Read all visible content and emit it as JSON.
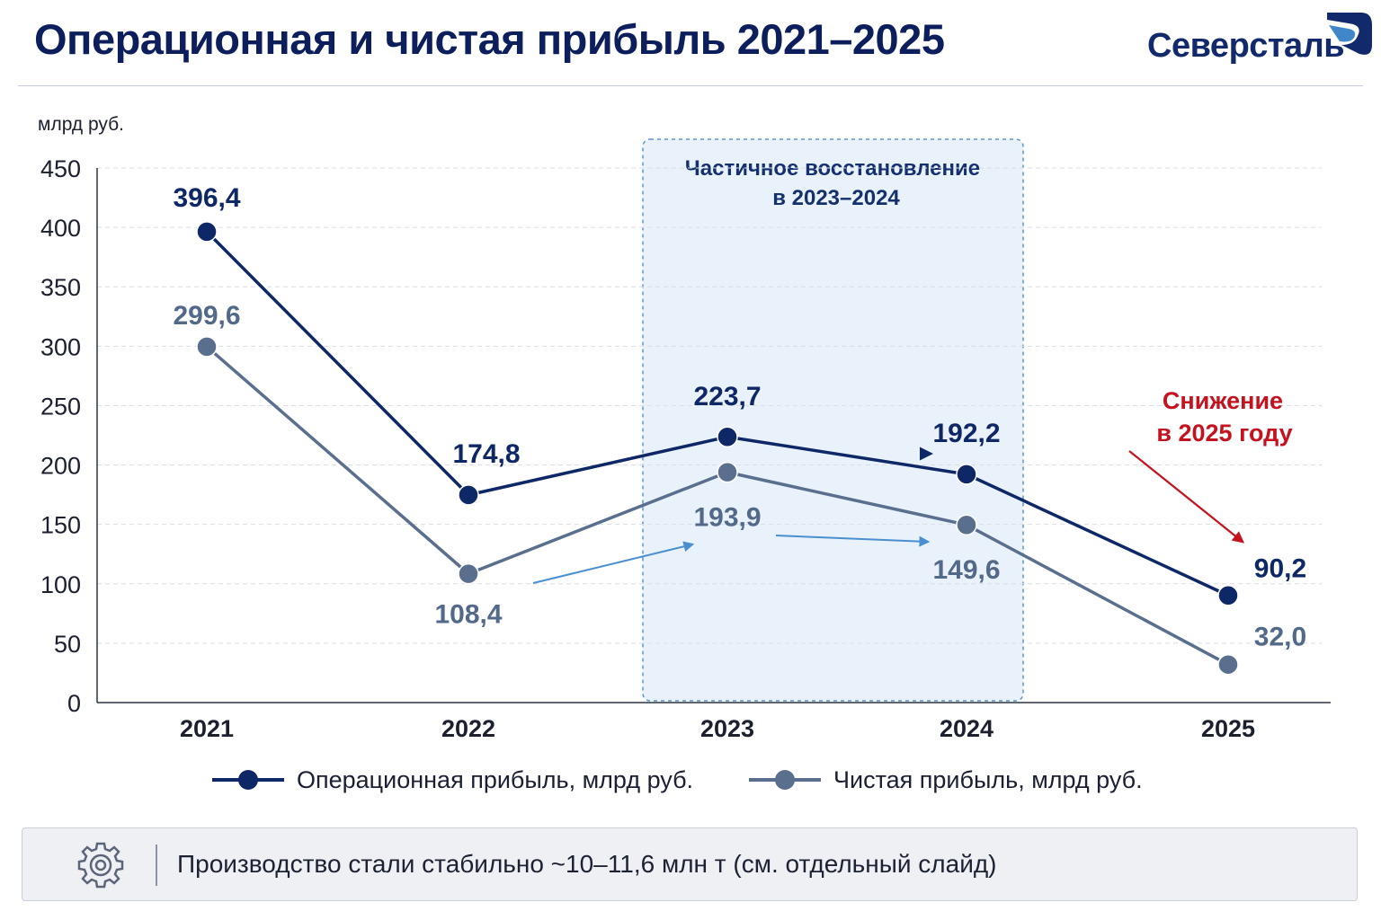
{
  "header": {
    "title": "Операционная и чистая прибыль 2021–2025",
    "brand": "Северсталь"
  },
  "colors": {
    "operating": "#0e2766",
    "net": "#5a6f8e",
    "highlight_fill": "#e9f1fb",
    "highlight_border": "#5b94d3",
    "decline": "#c4121f",
    "trend_arrow": "#4a90d0"
  },
  "chart_data": {
    "type": "line",
    "unit_label": "млрд руб.",
    "ylim": [
      0,
      450
    ],
    "yticks": [
      "0",
      "50",
      "100",
      "150",
      "200",
      "250",
      "300",
      "350",
      "400",
      "450"
    ],
    "grid": true,
    "legend_position": "bottom",
    "x": [
      "2021",
      "2022",
      "2023",
      "2024",
      "2025"
    ],
    "series": [
      {
        "name": "Операционная прибыль, млрд руб.",
        "values": [
          396.4,
          174.8,
          223.7,
          192.2,
          90.2
        ],
        "value_labels": [
          "396,4",
          "174,8",
          "223,7",
          "192,2",
          "90,2"
        ]
      },
      {
        "name": "Чистая прибыль, млрд руб.",
        "values": [
          299.6,
          108.4,
          193.9,
          149.6,
          32.0
        ],
        "value_labels": [
          "299,6",
          "108,4",
          "193,9",
          "149,6",
          "32,0"
        ]
      }
    ],
    "annotations": [
      {
        "text_lines": [
          "Частичное восстановление",
          "в 2023–2024"
        ],
        "span": [
          "2023",
          "2024"
        ]
      },
      {
        "text_lines": [
          "Снижение",
          "в 2025 году"
        ],
        "target": "2025"
      }
    ]
  },
  "footer": {
    "icon": "gear-icon",
    "note": "Производство стали стабильно ~10–11,6 млн т (см. отдельный слайд)"
  }
}
